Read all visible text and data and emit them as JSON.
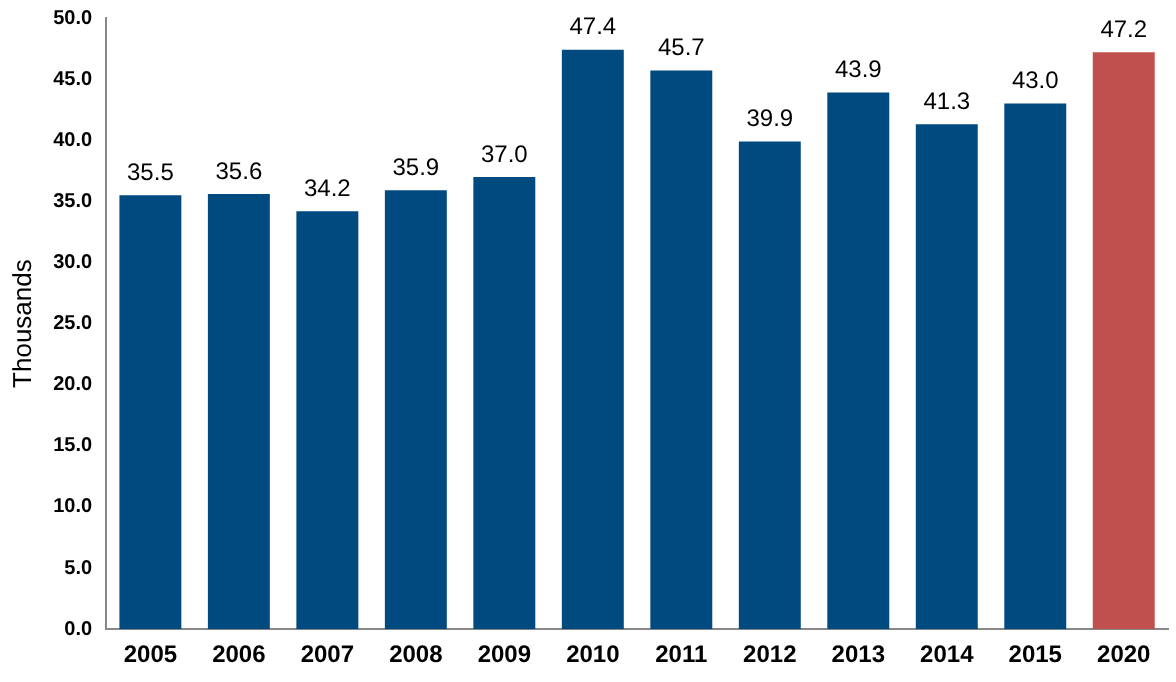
{
  "chart_data": {
    "type": "bar",
    "ylabel": "Thousands",
    "categories": [
      "2005",
      "2006",
      "2007",
      "2008",
      "2009",
      "2010",
      "2011",
      "2012",
      "2013",
      "2014",
      "2015",
      "2020"
    ],
    "values": [
      35.5,
      35.6,
      34.2,
      35.9,
      37.0,
      47.4,
      45.7,
      39.9,
      43.9,
      41.3,
      43.0,
      47.2
    ],
    "value_labels": [
      "35.5",
      "35.6",
      "34.2",
      "35.9",
      "37.0",
      "47.4",
      "45.7",
      "39.9",
      "43.9",
      "41.3",
      "43.0",
      "47.2"
    ],
    "colors": [
      "#004a80",
      "#004a80",
      "#004a80",
      "#004a80",
      "#004a80",
      "#004a80",
      "#004a80",
      "#004a80",
      "#004a80",
      "#004a80",
      "#004a80",
      "#c0504d"
    ],
    "ylim": [
      0,
      50
    ],
    "yticks": [
      {
        "value": 0,
        "label": "0.0"
      },
      {
        "value": 5,
        "label": "5.0"
      },
      {
        "value": 10,
        "label": "10.0"
      },
      {
        "value": 15,
        "label": "15.0"
      },
      {
        "value": 20,
        "label": "20.0"
      },
      {
        "value": 25,
        "label": "25.0"
      },
      {
        "value": 30,
        "label": "30.0"
      },
      {
        "value": 35,
        "label": "35.0"
      },
      {
        "value": 40,
        "label": "40.0"
      },
      {
        "value": 45,
        "label": "45.0"
      },
      {
        "value": 50,
        "label": "50.0"
      }
    ],
    "grid": false,
    "legend": false
  }
}
